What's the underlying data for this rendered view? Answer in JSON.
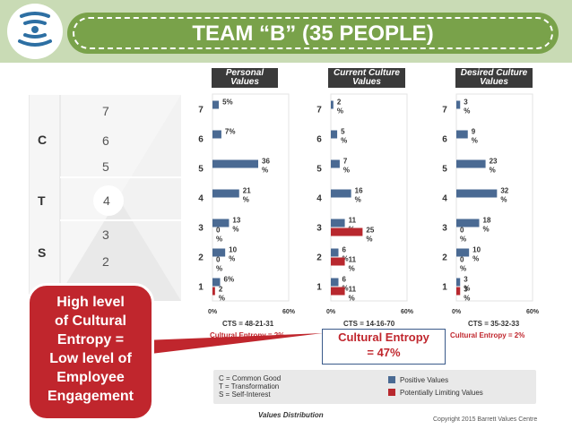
{
  "title": "TEAM “B” (35 PEOPLE)",
  "funnel": {
    "levels": [
      "7",
      "6",
      "5",
      "4",
      "3",
      "2",
      "1"
    ],
    "groups": [
      {
        "letter": "C",
        "levels": [
          "7",
          "6",
          "5"
        ]
      },
      {
        "letter": "T",
        "levels": [
          "4"
        ]
      },
      {
        "letter": "S",
        "levels": [
          "3",
          "2",
          "1"
        ]
      }
    ]
  },
  "chart_data": [
    {
      "type": "bar",
      "title": "Personal Values",
      "categories": [
        "1",
        "2",
        "3",
        "4",
        "5",
        "6",
        "7"
      ],
      "series": [
        {
          "name": "Positive Values",
          "color": "#4a6a93",
          "values": [
            6,
            10,
            13,
            21,
            36,
            7,
            5
          ],
          "labels": [
            "6%",
            "10\n%",
            "13\n%",
            "21\n%",
            "36\n%",
            "7%",
            "5%"
          ]
        },
        {
          "name": "Potentially Limiting Values",
          "color": "#b8282e",
          "values": [
            2,
            0,
            0,
            null,
            null,
            null,
            null
          ],
          "labels": [
            "2\n%",
            "0\n%",
            "0\n%",
            "",
            "",
            "",
            ""
          ]
        }
      ],
      "xlim": [
        0,
        60
      ],
      "xticks": [
        "0%",
        "60%"
      ],
      "cts": "CTS = 48-21-31",
      "entropy": "Cultural Entropy = 2%"
    },
    {
      "type": "bar",
      "title": "Current Culture Values",
      "categories": [
        "1",
        "2",
        "3",
        "4",
        "5",
        "6",
        "7"
      ],
      "series": [
        {
          "name": "Positive Values",
          "color": "#4a6a93",
          "values": [
            6,
            6,
            11,
            16,
            7,
            5,
            2
          ],
          "labels": [
            "6\n%",
            "6\n%",
            "11\n%",
            "16\n%",
            "7\n%",
            "5\n%",
            "2\n%"
          ]
        },
        {
          "name": "Potentially Limiting Values",
          "color": "#b8282e",
          "values": [
            11,
            11,
            25,
            null,
            null,
            null,
            null
          ],
          "labels": [
            "11\n%",
            "11\n%",
            "25\n%",
            "",
            "",
            "",
            ""
          ]
        }
      ],
      "xlim": [
        0,
        60
      ],
      "xticks": [
        "0%",
        "60%"
      ],
      "cts": "CTS = 14-16-70",
      "entropy": "Cultural Entropy = 47%"
    },
    {
      "type": "bar",
      "title": "Desired Culture Values",
      "categories": [
        "1",
        "2",
        "3",
        "4",
        "5",
        "6",
        "7"
      ],
      "series": [
        {
          "name": "Positive Values",
          "color": "#4a6a93",
          "values": [
            3,
            10,
            18,
            32,
            23,
            9,
            3
          ],
          "labels": [
            "3\n%",
            "10\n%",
            "18\n%",
            "32\n%",
            "23\n%",
            "9\n%",
            "3\n%"
          ]
        },
        {
          "name": "Potentially Limiting Values",
          "color": "#b8282e",
          "values": [
            3,
            0,
            0,
            null,
            null,
            null,
            null
          ],
          "labels": [
            "3\n%",
            "0\n%",
            "0\n%",
            "",
            "",
            "",
            ""
          ]
        }
      ],
      "xlim": [
        0,
        60
      ],
      "xticks": [
        "0%",
        "60%"
      ],
      "cts": "CTS = 35-32-33",
      "entropy": "Cultural Entropy = 2%"
    }
  ],
  "legend": {
    "key_lines": [
      "C = Common Good",
      "T = Transformation",
      "S = Self-Interest"
    ],
    "positive": "Positive Values",
    "limiting": "Potentially Limiting Values",
    "colors": {
      "positive": "#4a6a93",
      "limiting": "#b8282e"
    }
  },
  "callout": {
    "text": "High level of Cultural Entropy = Low level of Employee Engagement",
    "lines": [
      "High level",
      "of Cultural",
      "Entropy =",
      "Low level of",
      "Employee",
      "Engagement"
    ]
  },
  "highlight_box": {
    "lines": [
      "Cultural Entropy",
      "= 47%"
    ]
  },
  "footer": {
    "label": "Values Distribution",
    "copyright": "Copyright 2015 Barrett Values Centre"
  },
  "colors": {
    "green": "#79a24a",
    "background": "#c9dbb5",
    "red": "#c0262d"
  }
}
